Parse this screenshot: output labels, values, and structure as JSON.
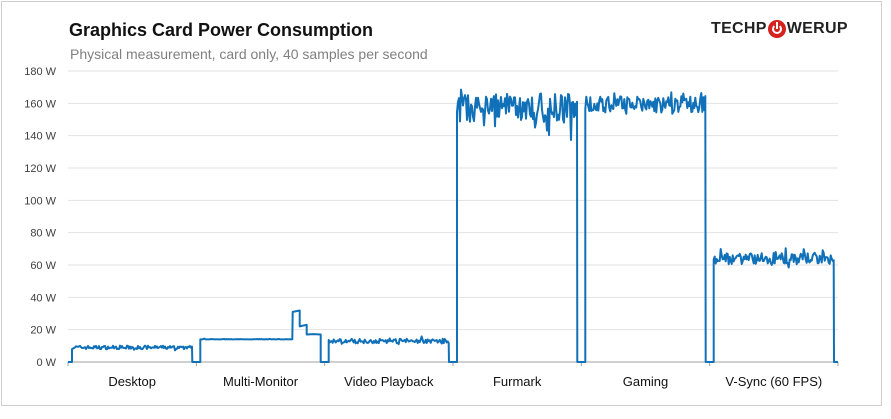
{
  "chart_data": {
    "type": "line",
    "title": "Graphics  Card Power Consumption",
    "subtitle": "Physical measurement, card only, 40 samples per second",
    "logo": {
      "left": "TECHP",
      "right": "WERUP"
    },
    "ylim": [
      0,
      180
    ],
    "yticks": [
      "0 W",
      "20 W",
      "40 W",
      "60 W",
      "80 W",
      "100 W",
      "120 W",
      "140 W",
      "160 W",
      "180 W"
    ],
    "grid": true,
    "line_color": "#1070b8",
    "categories": [
      "Desktop",
      "Multi-Monitor",
      "Video Playback",
      "Furmark",
      "Gaming",
      "V-Sync (60 FPS)"
    ],
    "series": [
      {
        "segment": "Desktop",
        "mean": 9,
        "min": 7,
        "max": 11
      },
      {
        "segment": "Multi-Monitor",
        "mean": 14,
        "min": 14,
        "max": 15,
        "spike": [
          31,
          22,
          17
        ]
      },
      {
        "segment": "Video Playback",
        "mean": 13,
        "min": 11,
        "max": 16
      },
      {
        "segment": "Furmark",
        "mean": 157,
        "min": 136,
        "max": 169
      },
      {
        "segment": "Gaming",
        "mean": 159,
        "min": 148,
        "max": 168
      },
      {
        "segment": "V-Sync (60 FPS)",
        "mean": 64,
        "min": 58,
        "max": 71
      }
    ]
  }
}
